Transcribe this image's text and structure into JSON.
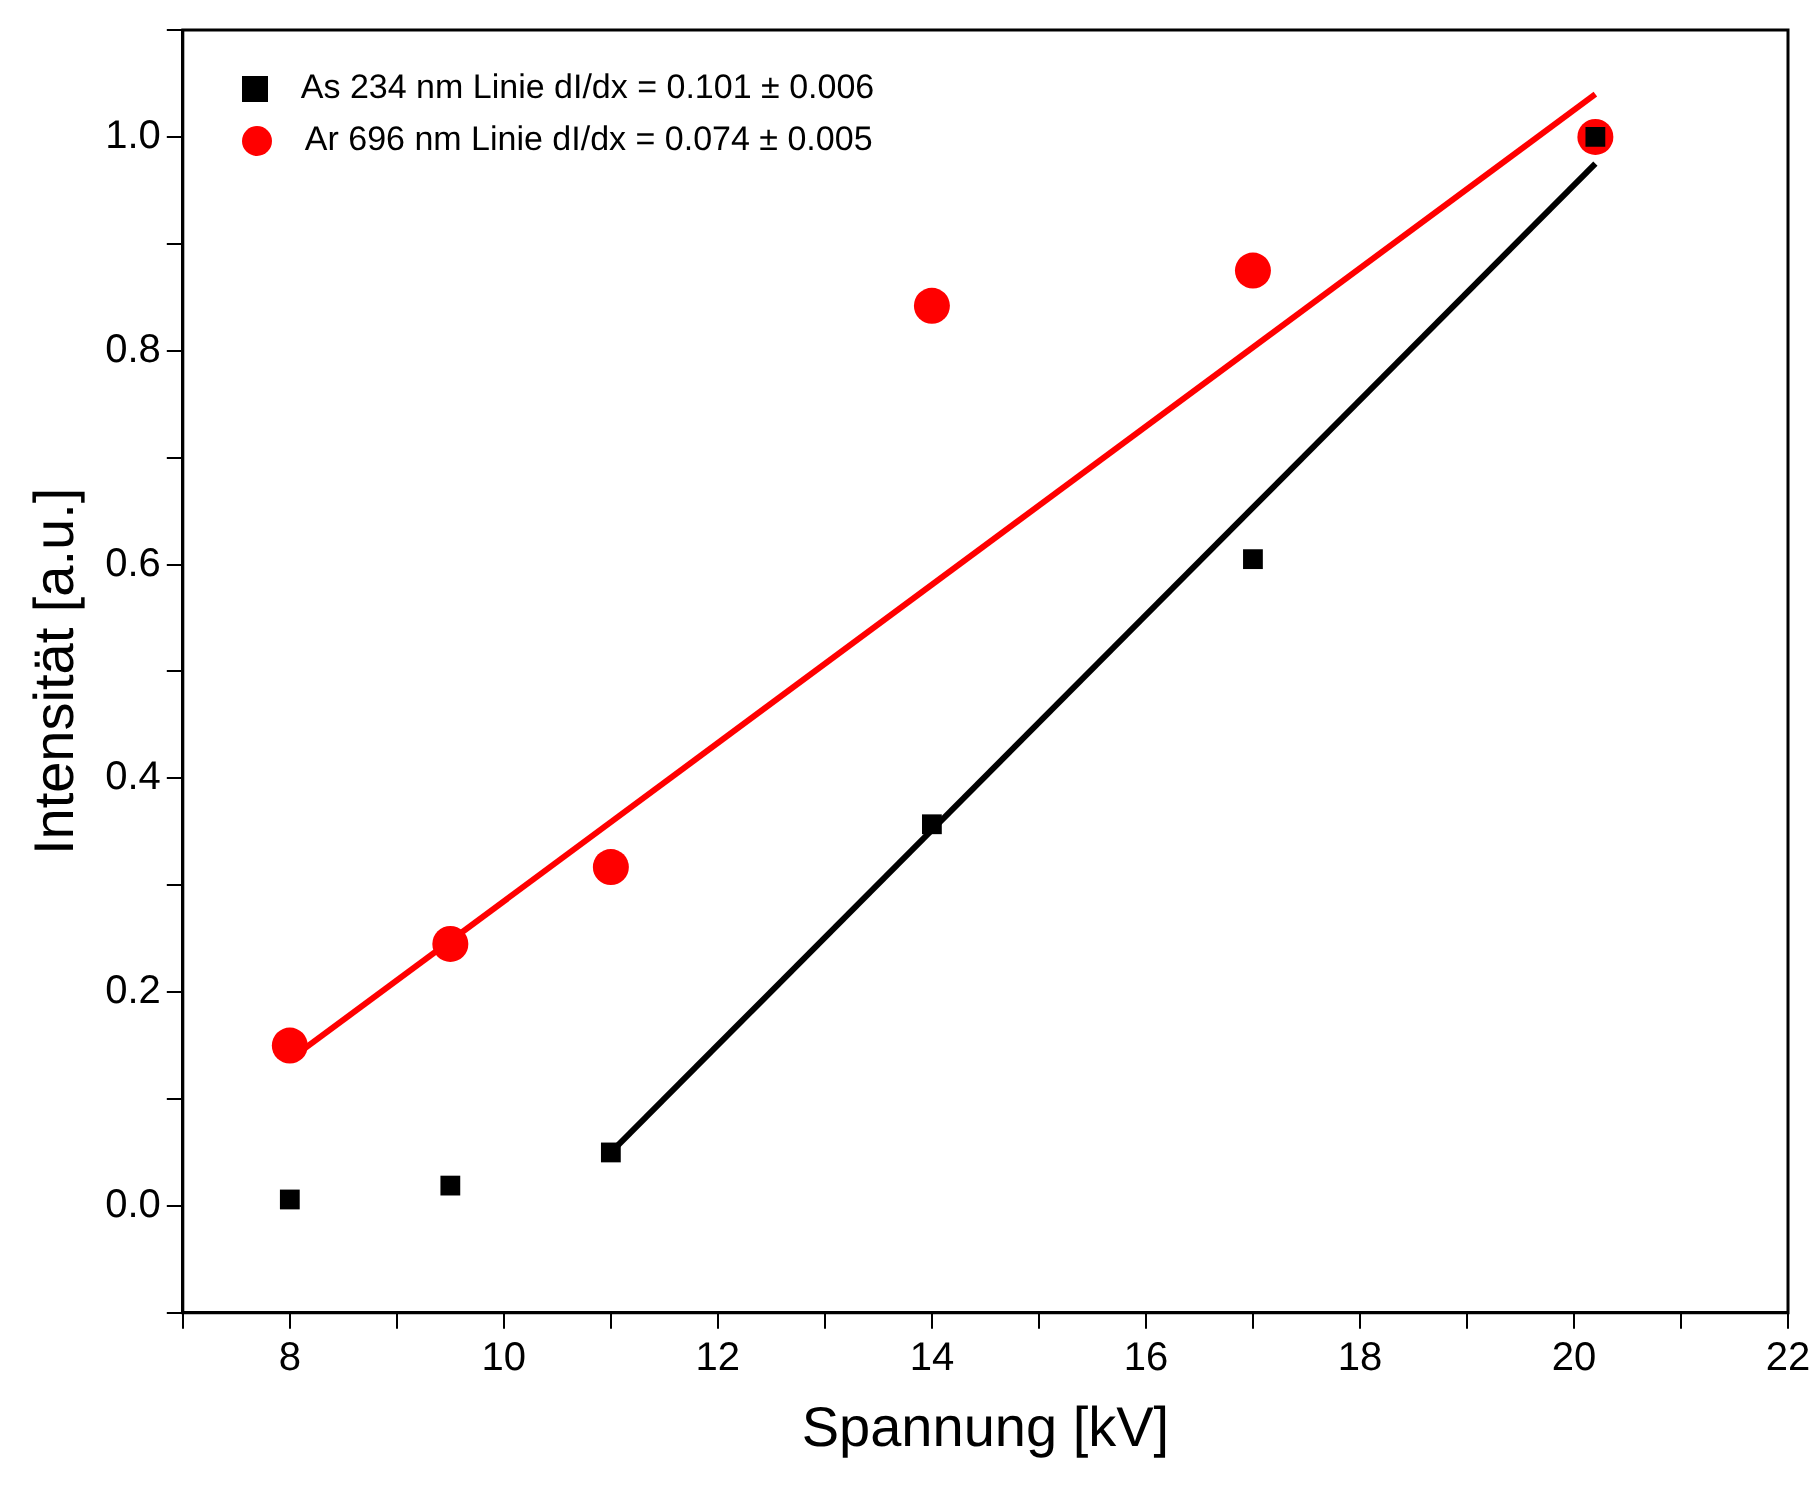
{
  "chart_data": {
    "type": "scatter",
    "xlabel": "Spannung [kV]",
    "ylabel": "Intensität [a.u.]",
    "xlim": [
      7,
      22
    ],
    "xticks": [
      {
        "value": 7,
        "label": null
      },
      8,
      {
        "value": 9,
        "label": null
      },
      10,
      {
        "value": 11,
        "label": null
      },
      12,
      {
        "value": 13,
        "label": null
      },
      14,
      {
        "value": 15,
        "label": null
      },
      16,
      {
        "value": 17,
        "label": null
      },
      18,
      {
        "value": 19,
        "label": null
      },
      20,
      {
        "value": 21,
        "label": null
      },
      22
    ],
    "ylim": [
      -0.1,
      1.1
    ],
    "yticks": [
      {
        "value": -0.1,
        "label": null
      },
      {
        "value": 0,
        "label": "0.0"
      },
      {
        "value": 0.1,
        "label": null
      },
      0.2,
      {
        "value": 0.3,
        "label": null
      },
      0.4,
      {
        "value": 0.5,
        "label": null
      },
      0.6,
      {
        "value": 0.7,
        "label": null
      },
      0.8,
      {
        "value": 0.9,
        "label": null
      },
      {
        "value": 1,
        "label": "1.0"
      },
      {
        "value": 1.1,
        "label": null
      }
    ],
    "grid": false,
    "legend": "top left",
    "series": [
      {
        "name": "As 234 nm Linie dI/dx = 0.101 ± 0.006",
        "color": "#000000",
        "marker": "square",
        "x": [
          8,
          9.5,
          11,
          14,
          17,
          20.2
        ],
        "values": [
          0.006,
          0.019,
          0.05,
          0.357,
          0.605,
          1.0
        ]
      },
      {
        "name": "Ar 696 nm Linie dI/dx = 0.074 ± 0.005",
        "color": "#ff0000",
        "marker": "circle",
        "x": [
          8,
          9.5,
          11,
          14,
          17,
          20.2
        ],
        "values": [
          0.15,
          0.245,
          0.317,
          0.842,
          0.875,
          1.0
        ]
      },
      {
        "type": "line",
        "color": "#000000",
        "marker": "none",
        "line_style": "solid",
        "x": [
          11,
          20.2
        ],
        "values": [
          0.05,
          0.975
        ]
      },
      {
        "type": "line",
        "color": "#ff0000",
        "marker": "none",
        "line_style": "solid",
        "x": [
          8,
          20.2
        ],
        "values": [
          0.137,
          1.04
        ]
      }
    ]
  }
}
